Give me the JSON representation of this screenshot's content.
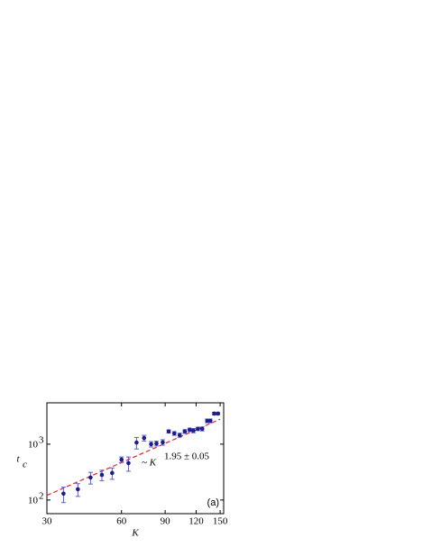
{
  "chart_data": {
    "type": "scatter",
    "x": [
      35,
      40,
      45,
      50,
      55,
      60,
      64,
      69,
      74,
      79,
      83,
      88,
      93,
      98,
      103,
      108,
      113,
      117,
      122,
      127,
      133,
      137,
      142,
      147
    ],
    "values": [
      130,
      156,
      253,
      282,
      305,
      530,
      458,
      1070,
      1290,
      1000,
      1030,
      1080,
      1690,
      1560,
      1450,
      1690,
      1810,
      1750,
      1880,
      1880,
      2620,
      2620,
      3530,
      3530
    ],
    "errors": [
      40,
      40,
      60,
      60,
      70,
      60,
      130,
      250,
      150,
      110,
      100,
      120,
      110,
      120,
      120,
      130,
      130,
      150,
      130,
      150,
      200,
      200,
      200,
      150
    ],
    "color": "#1c1c8a",
    "error_color": "#5a5ad6",
    "fit": {
      "x": [
        30,
        150
      ],
      "values": [
        121,
        2800
      ],
      "color": "#e02020"
    },
    "xlabel": "K",
    "ylabel": "t",
    "ylabel_sub": "c",
    "annotation": {
      "text": "~ K",
      "sup": "1.95 ± 0.05"
    },
    "panel_label": "(a)",
    "xscale": "log",
    "yscale": "log",
    "xlim": [
      30,
      155
    ],
    "ylim": [
      57,
      5500
    ],
    "xticks": [
      30,
      60,
      90,
      120,
      150
    ],
    "yticks": [
      {
        "value": 100,
        "label": "10",
        "exp": "2"
      },
      {
        "value": 1000,
        "label": "10",
        "exp": "3"
      }
    ]
  }
}
